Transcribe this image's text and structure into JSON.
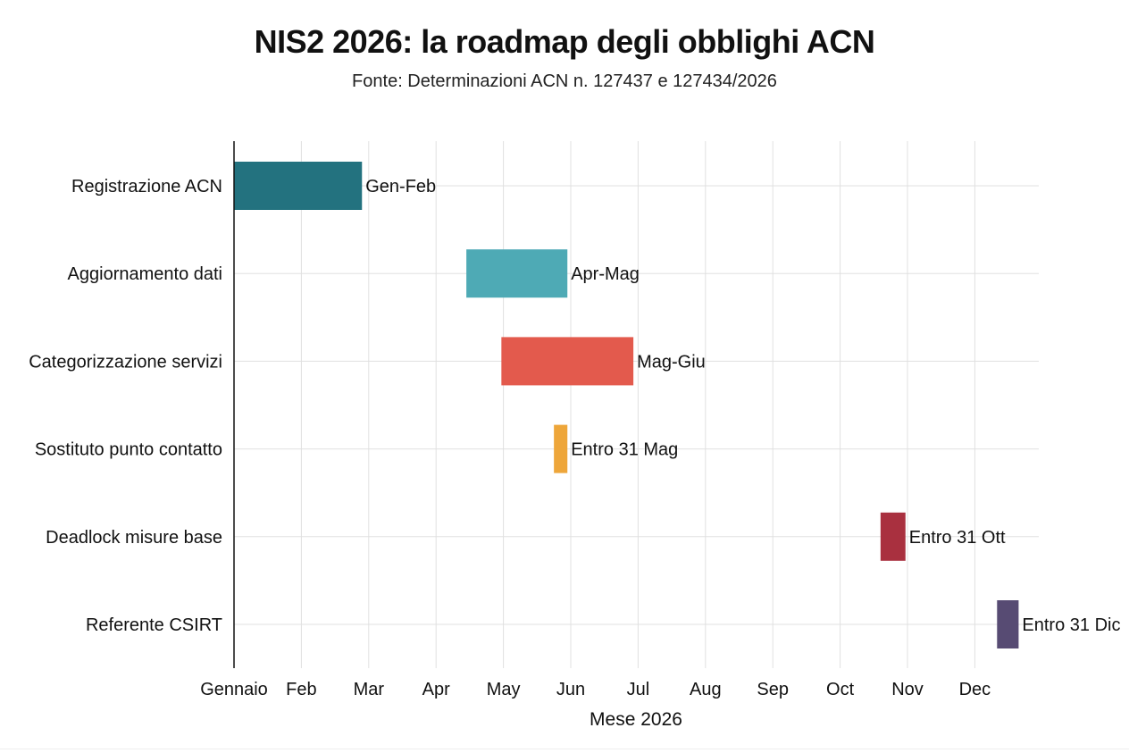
{
  "title": "NIS2 2026: la roadmap degli obblighi ACN",
  "subtitle": "Fonte: Determinazioni ACN n. 127437 e 127434/2026",
  "chart_data": {
    "type": "bar",
    "orientation": "horizontal-gantt",
    "title": "NIS2 2026: la roadmap degli obblighi ACN",
    "subtitle": "Fonte: Determinazioni ACN n. 127437 e 127434/2026",
    "xlabel": "Mese 2026",
    "ylabel": "",
    "x_ticks": [
      "Gennaio",
      "Feb",
      "Mar",
      "Apr",
      "May",
      "Jun",
      "Jul",
      "Aug",
      "Sep",
      "Oct",
      "Nov",
      "Dec"
    ],
    "xlim": [
      0,
      12
    ],
    "grid": true,
    "tasks": [
      {
        "name": "Registrazione ACN",
        "start": 0.0,
        "end": 1.9,
        "label": "Gen-Feb",
        "color": "#23727f"
      },
      {
        "name": "Aggiornamento dati",
        "start": 3.45,
        "end": 4.95,
        "label": "Apr-Mag",
        "color": "#4eaab5"
      },
      {
        "name": "Categorizzazione servizi",
        "start": 3.97,
        "end": 5.93,
        "label": "Mag-Giu",
        "color": "#e35a4d"
      },
      {
        "name": "Sostituto punto contatto",
        "start": 4.75,
        "end": 4.95,
        "label": "Entro 31 Mag",
        "color": "#eea63a"
      },
      {
        "name": "Deadlock misure base",
        "start": 9.6,
        "end": 9.97,
        "label": "Entro 31 Ott",
        "color": "#a9303f"
      },
      {
        "name": "Referente CSIRT",
        "start": 11.33,
        "end": 11.65,
        "label": "Entro 31 Dic",
        "color": "#574b73"
      }
    ]
  }
}
